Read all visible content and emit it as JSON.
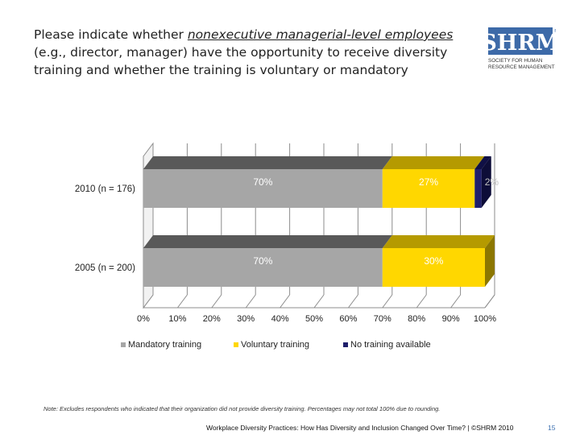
{
  "title": {
    "pre": "Please indicate whether ",
    "emph": "nonexecutive managerial-level employees",
    "post": " (e.g., director, manager) have the opportunity to receive diversity training and whether the training is voluntary or mandatory"
  },
  "logo": {
    "letters": "SHRM",
    "line1": "SOCIETY FOR HUMAN",
    "line2": "RESOURCE MANAGEMENT",
    "mark": "®"
  },
  "colors": {
    "mandatory": "#a6a6a6",
    "voluntary": "#ffd700",
    "none": "#1f1f6b"
  },
  "chart_data": {
    "type": "bar",
    "orientation": "horizontal",
    "stacked": true,
    "three_d": true,
    "categories": [
      "2010 (n = 176)",
      "2005 (n = 200)"
    ],
    "series": [
      {
        "name": "Mandatory training",
        "values": [
          70,
          70
        ],
        "labels": [
          "70%",
          "70%"
        ]
      },
      {
        "name": "Voluntary training",
        "values": [
          27,
          30
        ],
        "labels": [
          "27%",
          "30%"
        ]
      },
      {
        "name": "No training available",
        "values": [
          2,
          0
        ],
        "labels": [
          "2%",
          ""
        ]
      }
    ],
    "xlim": [
      0,
      100
    ],
    "x_ticks": [
      "0%",
      "10%",
      "20%",
      "30%",
      "40%",
      "50%",
      "60%",
      "70%",
      "80%",
      "90%",
      "100%"
    ],
    "grid": true,
    "legend_position": "bottom"
  },
  "note": "Note: Excludes respondents who indicated that their organization did not provide diversity training. Percentages may not total 100% due to rounding.",
  "footer": "Workplace Diversity Practices: How Has Diversity and Inclusion Changed Over Time? | ©SHRM 2010",
  "page_number": "15"
}
